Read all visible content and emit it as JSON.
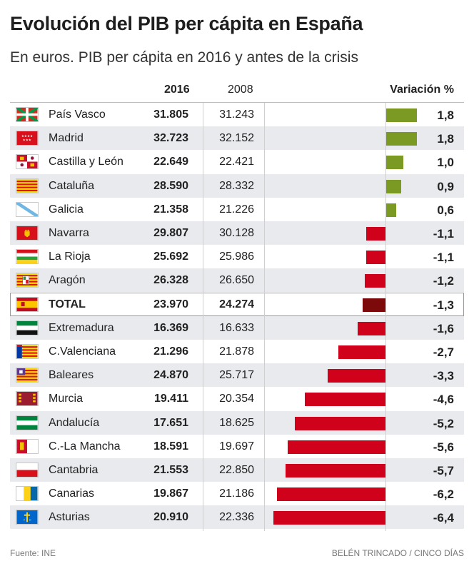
{
  "header": {
    "title": "Evolución del PIB per cápita en España",
    "subtitle": "En euros. PIB per cápita en 2016 y antes de la crisis"
  },
  "columns": {
    "y2016": "2016",
    "y2008": "2008",
    "variation": "Variación %"
  },
  "colors": {
    "positive": "#7a9a24",
    "negative": "#d0021b",
    "total": "#7d0a0a"
  },
  "chart_data": {
    "type": "table",
    "title": "Evolución del PIB per cápita en España",
    "subtitle": "En euros. PIB per cápita en 2016 y antes de la crisis",
    "columns": [
      "2016",
      "2008",
      "Variación %"
    ],
    "rows": [
      {
        "name": "País Vasco",
        "flag": "pais-vasco",
        "v2016": "31.805",
        "v2008": "31.243",
        "variation": 1.8,
        "label": "1,8"
      },
      {
        "name": "Madrid",
        "flag": "madrid",
        "v2016": "32.723",
        "v2008": "32.152",
        "variation": 1.8,
        "label": "1,8"
      },
      {
        "name": "Castilla y León",
        "flag": "castilla-leon",
        "v2016": "22.649",
        "v2008": "22.421",
        "variation": 1.0,
        "label": "1,0"
      },
      {
        "name": "Cataluña",
        "flag": "cataluna",
        "v2016": "28.590",
        "v2008": "28.332",
        "variation": 0.9,
        "label": "0,9"
      },
      {
        "name": "Galicia",
        "flag": "galicia",
        "v2016": "21.358",
        "v2008": "21.226",
        "variation": 0.6,
        "label": "0,6"
      },
      {
        "name": "Navarra",
        "flag": "navarra",
        "v2016": "29.807",
        "v2008": "30.128",
        "variation": -1.1,
        "label": "-1,1"
      },
      {
        "name": "La Rioja",
        "flag": "la-rioja",
        "v2016": "25.692",
        "v2008": "25.986",
        "variation": -1.1,
        "label": "-1,1"
      },
      {
        "name": "Aragón",
        "flag": "aragon",
        "v2016": "26.328",
        "v2008": "26.650",
        "variation": -1.2,
        "label": "-1,2"
      },
      {
        "name": "TOTAL",
        "flag": "espana",
        "v2016": "23.970",
        "v2008": "24.274",
        "variation": -1.3,
        "label": "-1,3",
        "total": true
      },
      {
        "name": "Extremadura",
        "flag": "extremadura",
        "v2016": "16.369",
        "v2008": "16.633",
        "variation": -1.6,
        "label": "-1,6"
      },
      {
        "name": "C.Valenciana",
        "flag": "c-valenciana",
        "v2016": "21.296",
        "v2008": "21.878",
        "variation": -2.7,
        "label": "-2,7"
      },
      {
        "name": "Baleares",
        "flag": "baleares",
        "v2016": "24.870",
        "v2008": "25.717",
        "variation": -3.3,
        "label": "-3,3"
      },
      {
        "name": "Murcia",
        "flag": "murcia",
        "v2016": "19.411",
        "v2008": "20.354",
        "variation": -4.6,
        "label": "-4,6"
      },
      {
        "name": "Andalucía",
        "flag": "andalucia",
        "v2016": "17.651",
        "v2008": "18.625",
        "variation": -5.2,
        "label": "-5,2"
      },
      {
        "name": "C.-La Mancha",
        "flag": "c-la-mancha",
        "v2016": "18.591",
        "v2008": "19.697",
        "variation": -5.6,
        "label": "-5,6"
      },
      {
        "name": "Cantabria",
        "flag": "cantabria",
        "v2016": "21.553",
        "v2008": "22.850",
        "variation": -5.7,
        "label": "-5,7"
      },
      {
        "name": "Canarias",
        "flag": "canarias",
        "v2016": "19.867",
        "v2008": "21.186",
        "variation": -6.2,
        "label": "-6,2"
      },
      {
        "name": "Asturias",
        "flag": "asturias",
        "v2016": "20.910",
        "v2008": "22.336",
        "variation": -6.4,
        "label": "-6,4"
      }
    ]
  },
  "footer": {
    "source": "Fuente: INE",
    "credit": "BELÉN TRINCADO / CINCO DÍAS"
  }
}
